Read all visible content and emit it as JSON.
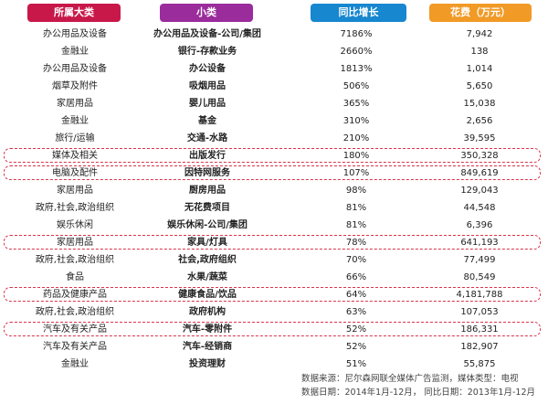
{
  "headers": {
    "category": "所属大类",
    "subcategory": "小类",
    "yoy_growth": "同比增长",
    "spend": "花费（万元）"
  },
  "rows": [
    {
      "category": "办公用品及设备",
      "subcategory": "办公用品及设备-公司/集团",
      "growth": "7186%",
      "spend": "7,942",
      "highlighted": false
    },
    {
      "category": "金融业",
      "subcategory": "银行-存款业务",
      "growth": "2660%",
      "spend": "138",
      "highlighted": false
    },
    {
      "category": "办公用品及设备",
      "subcategory": "办公设备",
      "growth": "1813%",
      "spend": "1,014",
      "highlighted": false
    },
    {
      "category": "烟草及附件",
      "subcategory": "吸烟用品",
      "growth": "506%",
      "spend": "5,650",
      "highlighted": false
    },
    {
      "category": "家居用品",
      "subcategory": "婴儿用品",
      "growth": "365%",
      "spend": "15,038",
      "highlighted": false
    },
    {
      "category": "金融业",
      "subcategory": "基金",
      "growth": "310%",
      "spend": "2,656",
      "highlighted": false
    },
    {
      "category": "旅行/运输",
      "subcategory": "交通-水路",
      "growth": "210%",
      "spend": "39,595",
      "highlighted": false
    },
    {
      "category": "媒体及相关",
      "subcategory": "出版发行",
      "growth": "180%",
      "spend": "350,328",
      "highlighted": true
    },
    {
      "category": "电脑及配件",
      "subcategory": "因特网服务",
      "growth": "107%",
      "spend": "849,619",
      "highlighted": true
    },
    {
      "category": "家居用品",
      "subcategory": "厨房用品",
      "growth": "98%",
      "spend": "129,043",
      "highlighted": false
    },
    {
      "category": "政府,社会,政治组织",
      "subcategory": "无花费项目",
      "growth": "81%",
      "spend": "44,548",
      "highlighted": false
    },
    {
      "category": "娱乐休闲",
      "subcategory": "娱乐休闲-公司/集团",
      "growth": "81%",
      "spend": "6,396",
      "highlighted": false
    },
    {
      "category": "家居用品",
      "subcategory": "家具/灯具",
      "growth": "78%",
      "spend": "641,193",
      "highlighted": true
    },
    {
      "category": "政府,社会,政治组织",
      "subcategory": "社会,政府组织",
      "growth": "70%",
      "spend": "77,499",
      "highlighted": false
    },
    {
      "category": "食品",
      "subcategory": "水果/蔬菜",
      "growth": "66%",
      "spend": "80,549",
      "highlighted": false
    },
    {
      "category": "药品及健康产品",
      "subcategory": "健康食品/饮品",
      "growth": "64%",
      "spend": "4,181,788",
      "highlighted": true
    },
    {
      "category": "政府,社会,政治组织",
      "subcategory": "政府机构",
      "growth": "63%",
      "spend": "107,053",
      "highlighted": false
    },
    {
      "category": "汽车及有关产品",
      "subcategory": "汽车-零附件",
      "growth": "52%",
      "spend": "186,331",
      "highlighted": true
    },
    {
      "category": "汽车及有关产品",
      "subcategory": "汽车-经销商",
      "growth": "52%",
      "spend": "182,907",
      "highlighted": false
    },
    {
      "category": "金融业",
      "subcategory": "投资理财",
      "growth": "51%",
      "spend": "55,875",
      "highlighted": false
    }
  ],
  "footer": {
    "source": "数据来源：尼尔森网联全媒体广告监测，媒体类型：电视",
    "dates": "数据日期：2014年1月-12月，  同比日期：2013年1月-12月"
  },
  "colors": {
    "category_header": "#c8184a",
    "subcategory_header": "#9a2c9c",
    "growth_header": "#1787cf",
    "spend_header": "#f19a26",
    "highlight_border": "#d9344d"
  }
}
